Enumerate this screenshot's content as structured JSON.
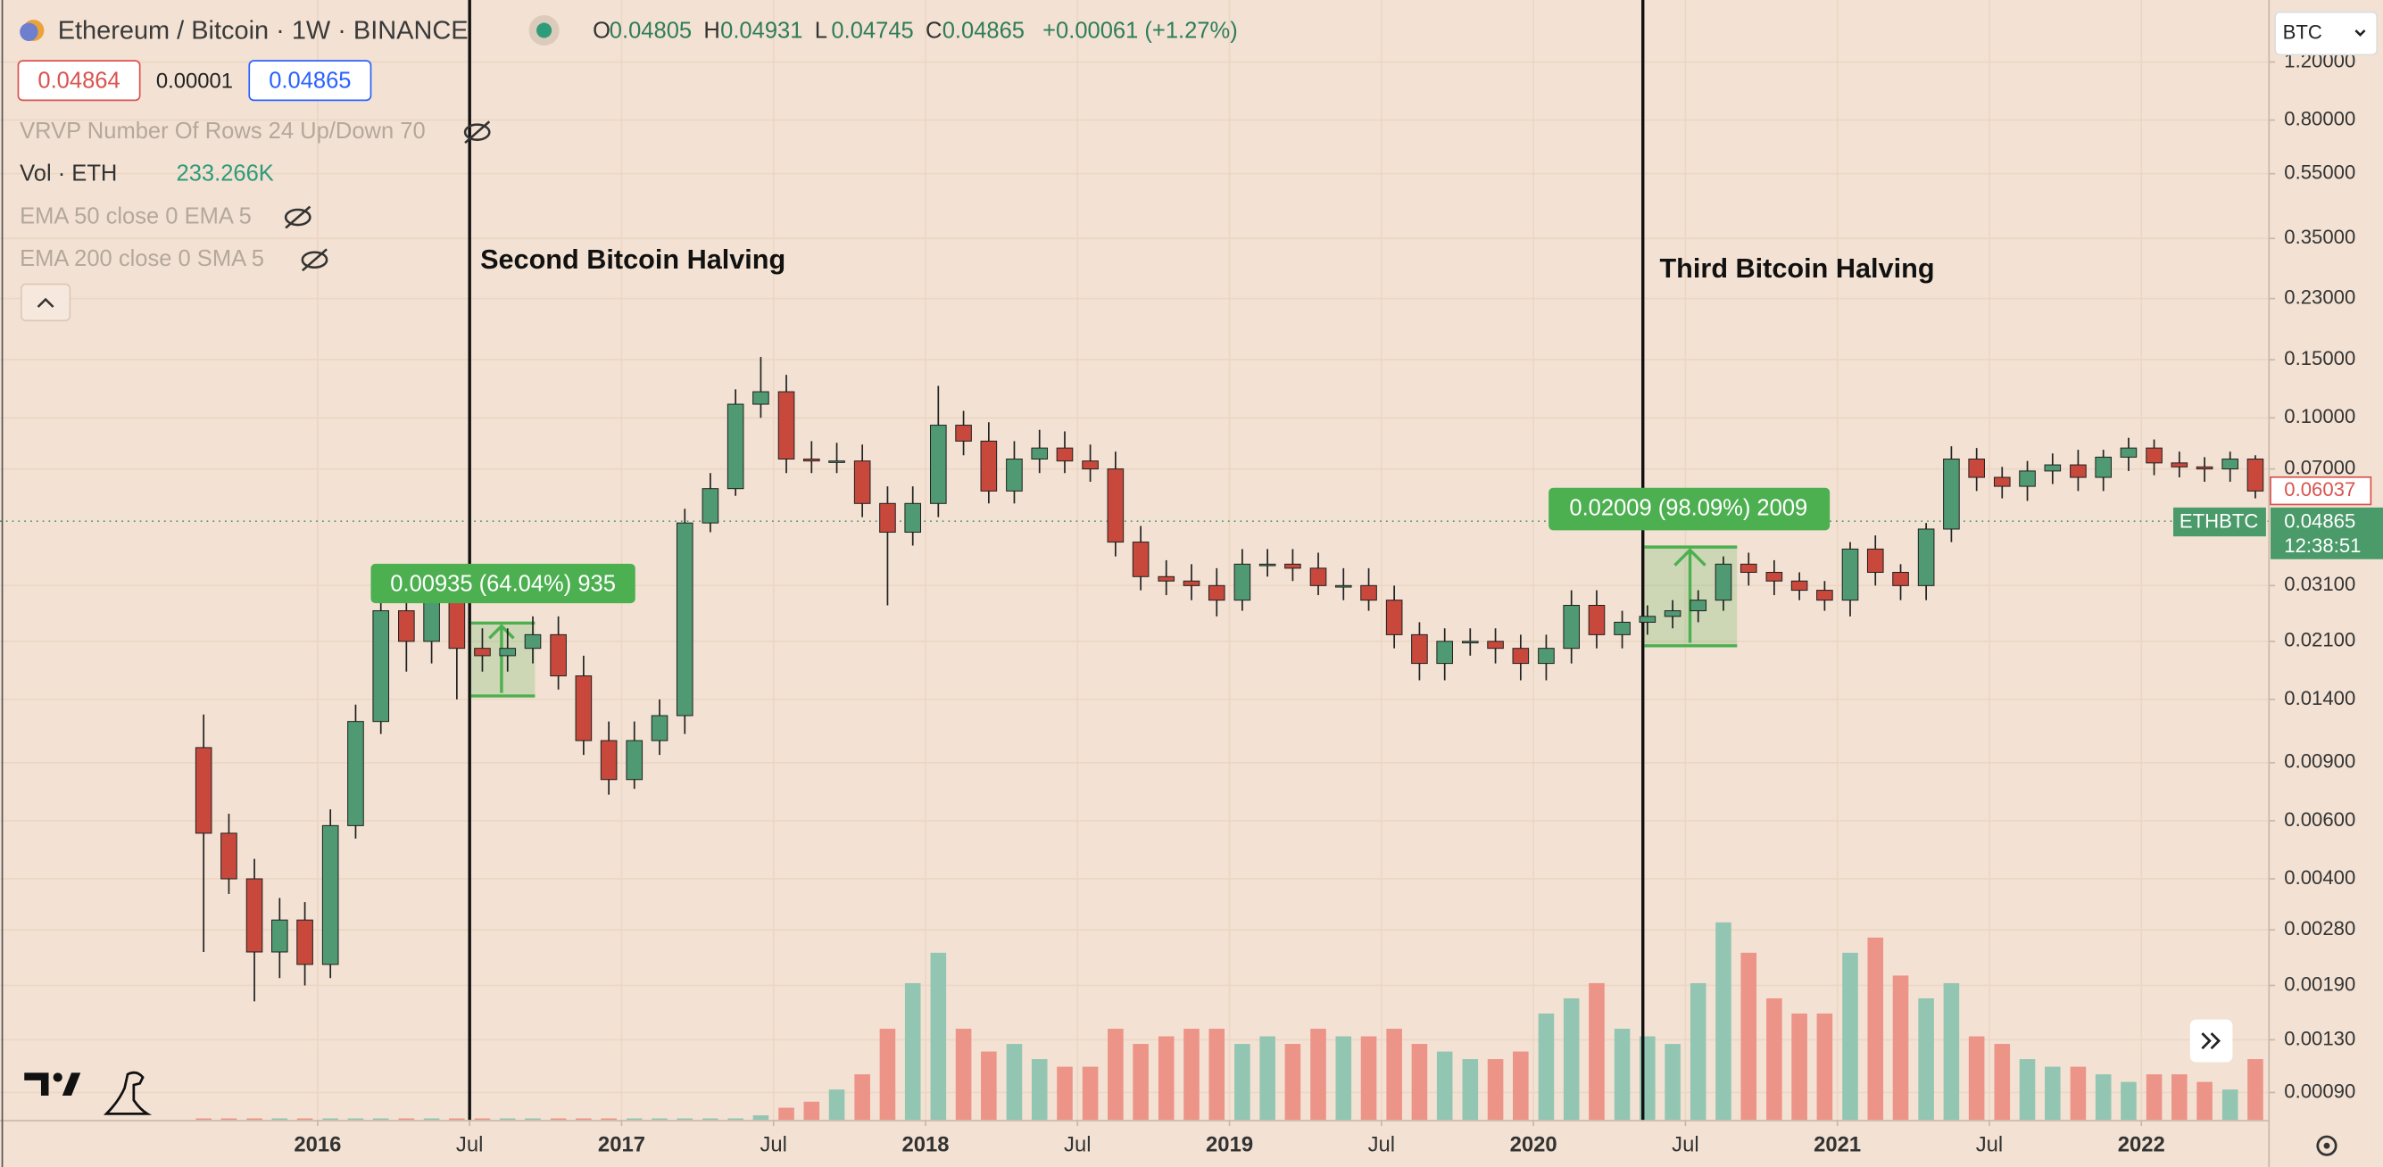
{
  "header": {
    "symbol": "Ethereum / Bitcoin · 1W · BINANCE",
    "ohlc": [
      {
        "label": "O",
        "value": "0.04805"
      },
      {
        "label": "H",
        "value": "0.04931"
      },
      {
        "label": "L",
        "value": "0.04745"
      },
      {
        "label": "C",
        "value": "0.04865"
      }
    ],
    "change": "+0.00061 (+1.27%)",
    "bid": "0.04864",
    "spread": "0.00001",
    "ask": "0.04865",
    "currency": "BTC"
  },
  "indicators": {
    "vrvp": "VRVP Number Of Rows 24 Up/Down 70",
    "volume_label": "Vol · ETH",
    "volume_value": "233.266K",
    "ema50": "EMA 50 close 0 EMA 5",
    "ema200": "EMA 200 close 0 SMA 5"
  },
  "chart_data": {
    "type": "candlestick",
    "log_scale": true,
    "grid": true,
    "up_color": "#4f9a72",
    "down_color": "#c8483c",
    "x": [
      2015.625,
      2015.708,
      2015.792,
      2015.875,
      2015.958,
      2016.042,
      2016.125,
      2016.208,
      2016.292,
      2016.375,
      2016.458,
      2016.542,
      2016.625,
      2016.708,
      2016.792,
      2016.875,
      2016.958,
      2017.042,
      2017.125,
      2017.208,
      2017.292,
      2017.375,
      2017.458,
      2017.542,
      2017.625,
      2017.708,
      2017.792,
      2017.875,
      2017.958,
      2018.042,
      2018.125,
      2018.208,
      2018.292,
      2018.375,
      2018.458,
      2018.542,
      2018.625,
      2018.708,
      2018.792,
      2018.875,
      2018.958,
      2019.042,
      2019.125,
      2019.208,
      2019.292,
      2019.375,
      2019.458,
      2019.542,
      2019.625,
      2019.708,
      2019.792,
      2019.875,
      2019.958,
      2020.042,
      2020.125,
      2020.208,
      2020.292,
      2020.375,
      2020.458,
      2020.542,
      2020.625,
      2020.708,
      2020.792,
      2020.875,
      2020.958,
      2021.042,
      2021.125,
      2021.208,
      2021.292,
      2021.375,
      2021.458,
      2021.542,
      2021.625,
      2021.708,
      2021.792,
      2021.875,
      2021.958,
      2022.042,
      2022.125,
      2022.208,
      2022.292,
      2022.375
    ],
    "open": [
      0.01,
      0.0055,
      0.004,
      0.0024,
      0.003,
      0.0022,
      0.0058,
      0.012,
      0.026,
      0.021,
      0.03,
      0.02,
      0.019,
      0.02,
      0.022,
      0.0165,
      0.0105,
      0.008,
      0.0105,
      0.0125,
      0.048,
      0.061,
      0.11,
      0.12,
      0.075,
      0.074,
      0.074,
      0.055,
      0.045,
      0.055,
      0.095,
      0.085,
      0.06,
      0.075,
      0.081,
      0.074,
      0.07,
      0.042,
      0.033,
      0.032,
      0.031,
      0.028,
      0.036,
      0.036,
      0.035,
      0.031,
      0.031,
      0.028,
      0.022,
      0.018,
      0.021,
      0.021,
      0.02,
      0.018,
      0.02,
      0.027,
      0.022,
      0.024,
      0.025,
      0.026,
      0.028,
      0.036,
      0.034,
      0.032,
      0.03,
      0.028,
      0.04,
      0.034,
      0.031,
      0.046,
      0.075,
      0.066,
      0.062,
      0.069,
      0.072,
      0.066,
      0.076,
      0.081,
      0.073,
      0.071,
      0.07,
      0.075
    ],
    "high": [
      0.0126,
      0.0063,
      0.0046,
      0.0035,
      0.0034,
      0.0065,
      0.0135,
      0.036,
      0.03,
      0.034,
      0.034,
      0.023,
      0.023,
      0.025,
      0.025,
      0.019,
      0.012,
      0.012,
      0.014,
      0.053,
      0.068,
      0.122,
      0.153,
      0.135,
      0.085,
      0.084,
      0.083,
      0.062,
      0.062,
      0.125,
      0.105,
      0.097,
      0.085,
      0.092,
      0.091,
      0.083,
      0.079,
      0.047,
      0.037,
      0.036,
      0.035,
      0.04,
      0.04,
      0.04,
      0.039,
      0.035,
      0.035,
      0.031,
      0.024,
      0.023,
      0.023,
      0.023,
      0.022,
      0.022,
      0.03,
      0.03,
      0.026,
      0.027,
      0.028,
      0.03,
      0.038,
      0.039,
      0.037,
      0.034,
      0.032,
      0.042,
      0.044,
      0.036,
      0.048,
      0.082,
      0.081,
      0.071,
      0.074,
      0.078,
      0.08,
      0.08,
      0.087,
      0.086,
      0.079,
      0.076,
      0.079,
      0.077
    ],
    "low": [
      0.0024,
      0.0036,
      0.0017,
      0.002,
      0.0019,
      0.002,
      0.0053,
      0.011,
      0.017,
      0.018,
      0.014,
      0.017,
      0.017,
      0.018,
      0.015,
      0.0095,
      0.0072,
      0.0075,
      0.0095,
      0.011,
      0.045,
      0.058,
      0.1,
      0.068,
      0.068,
      0.068,
      0.05,
      0.027,
      0.041,
      0.05,
      0.077,
      0.055,
      0.055,
      0.068,
      0.068,
      0.064,
      0.038,
      0.03,
      0.029,
      0.028,
      0.025,
      0.026,
      0.033,
      0.032,
      0.029,
      0.028,
      0.026,
      0.02,
      0.016,
      0.016,
      0.019,
      0.018,
      0.016,
      0.016,
      0.018,
      0.02,
      0.02,
      0.022,
      0.023,
      0.024,
      0.026,
      0.031,
      0.029,
      0.028,
      0.026,
      0.025,
      0.031,
      0.028,
      0.028,
      0.042,
      0.06,
      0.057,
      0.056,
      0.063,
      0.06,
      0.06,
      0.069,
      0.067,
      0.066,
      0.064,
      0.064,
      0.057
    ],
    "close": [
      0.0055,
      0.004,
      0.0024,
      0.003,
      0.0022,
      0.0058,
      0.012,
      0.026,
      0.021,
      0.03,
      0.02,
      0.019,
      0.02,
      0.022,
      0.0165,
      0.0105,
      0.008,
      0.0105,
      0.0125,
      0.048,
      0.061,
      0.11,
      0.12,
      0.075,
      0.074,
      0.074,
      0.055,
      0.045,
      0.055,
      0.095,
      0.085,
      0.06,
      0.075,
      0.081,
      0.074,
      0.07,
      0.042,
      0.033,
      0.032,
      0.031,
      0.028,
      0.036,
      0.036,
      0.035,
      0.031,
      0.031,
      0.028,
      0.022,
      0.018,
      0.021,
      0.021,
      0.02,
      0.018,
      0.02,
      0.027,
      0.022,
      0.024,
      0.025,
      0.026,
      0.028,
      0.036,
      0.034,
      0.032,
      0.03,
      0.028,
      0.04,
      0.034,
      0.031,
      0.046,
      0.075,
      0.066,
      0.062,
      0.069,
      0.072,
      0.066,
      0.076,
      0.081,
      0.073,
      0.071,
      0.07,
      0.075,
      0.06
    ],
    "volume": {
      "ylim": [
        0,
        3685
      ],
      "up_color": "#93c6b2",
      "down_color": "#ec9488",
      "values": [
        5,
        5,
        5,
        5,
        5,
        5,
        5,
        5,
        5,
        5,
        5,
        5,
        5,
        5,
        5,
        5,
        5,
        5,
        5,
        5,
        5,
        5,
        15,
        40,
        60,
        100,
        150,
        300,
        450,
        550,
        300,
        225,
        250,
        200,
        175,
        175,
        300,
        250,
        275,
        300,
        300,
        250,
        275,
        250,
        300,
        275,
        275,
        300,
        250,
        225,
        200,
        200,
        225,
        350,
        400,
        450,
        300,
        275,
        250,
        450,
        650,
        550,
        400,
        350,
        350,
        550,
        600,
        475,
        400,
        450,
        275,
        250,
        200,
        175,
        175,
        150,
        125,
        150,
        150,
        125,
        100,
        200
      ]
    },
    "ylim": [
      0.000743,
      1.85
    ],
    "yticks": [
      {
        "value": 1.2,
        "label": "1.20000"
      },
      {
        "value": 0.8,
        "label": "0.80000"
      },
      {
        "value": 0.55,
        "label": "0.55000"
      },
      {
        "value": 0.35,
        "label": "0.35000"
      },
      {
        "value": 0.23,
        "label": "0.23000"
      },
      {
        "value": 0.15,
        "label": "0.15000"
      },
      {
        "value": 0.1,
        "label": "0.10000"
      },
      {
        "value": 0.07,
        "label": "0.07000"
      },
      {
        "value": 0.031,
        "label": "0.03100"
      },
      {
        "value": 0.021,
        "label": "0.02100"
      },
      {
        "value": 0.014,
        "label": "0.01400"
      },
      {
        "value": 0.009,
        "label": "0.00900"
      },
      {
        "value": 0.006,
        "label": "0.00600"
      },
      {
        "value": 0.004,
        "label": "0.00400"
      },
      {
        "value": 0.0028,
        "label": "0.00280"
      },
      {
        "value": 0.0019,
        "label": "0.00190"
      },
      {
        "value": 0.0013,
        "label": "0.00130"
      },
      {
        "value": 0.0009,
        "label": "0.00090"
      }
    ],
    "xlim": [
      2014.955,
      2022.42
    ],
    "xticks": [
      2016,
      {
        "value": 2016.5,
        "label": "Jul"
      },
      2017,
      {
        "value": 2017.5,
        "label": "Jul"
      },
      2018,
      {
        "value": 2018.5,
        "label": "Jul"
      },
      2019,
      {
        "value": 2019.5,
        "label": "Jul"
      },
      2020,
      {
        "value": 2020.5,
        "label": "Jul"
      },
      2021,
      {
        "value": 2021.5,
        "label": "Jul"
      },
      2022
    ],
    "annotations": [
      "Second Bitcoin Halving",
      "Third Bitcoin Halving"
    ],
    "measures": [
      "0.00935 (64.04%) 935",
      "0.02009 (98.09%) 2009"
    ],
    "price_labels": {
      "marker": "0.06037",
      "symbol": "ETHBTC",
      "last": "0.04865",
      "countdown": "12:38:51"
    }
  }
}
